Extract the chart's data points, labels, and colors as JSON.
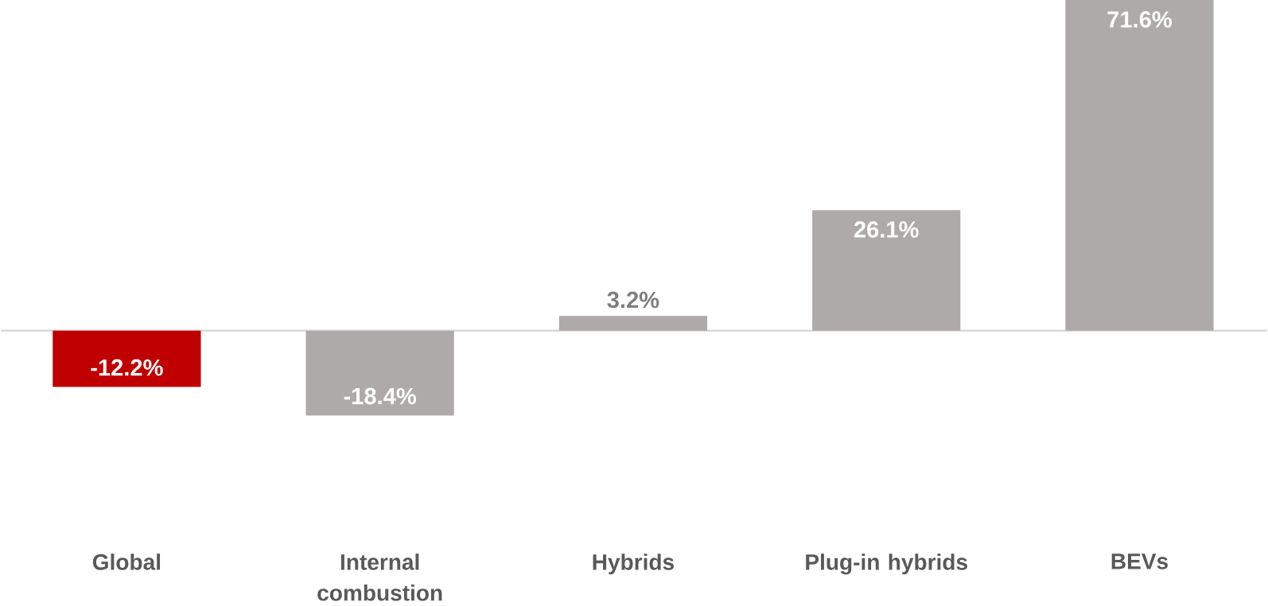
{
  "chart_data": {
    "type": "bar",
    "categories": [
      "Global",
      "Internal combustion",
      "Hybrids",
      "Plug-in hybrids",
      "BEVs"
    ],
    "values": [
      -12.2,
      -18.4,
      3.2,
      26.1,
      71.6
    ],
    "colors": [
      "#c00000",
      "#aeaaaa",
      "#aeaaaa",
      "#aeaaaa",
      "#aeaaaa"
    ],
    "value_labels": [
      "-12.2%",
      "-18.4%",
      "3.2%",
      "26.1%",
      "71.6%"
    ]
  }
}
